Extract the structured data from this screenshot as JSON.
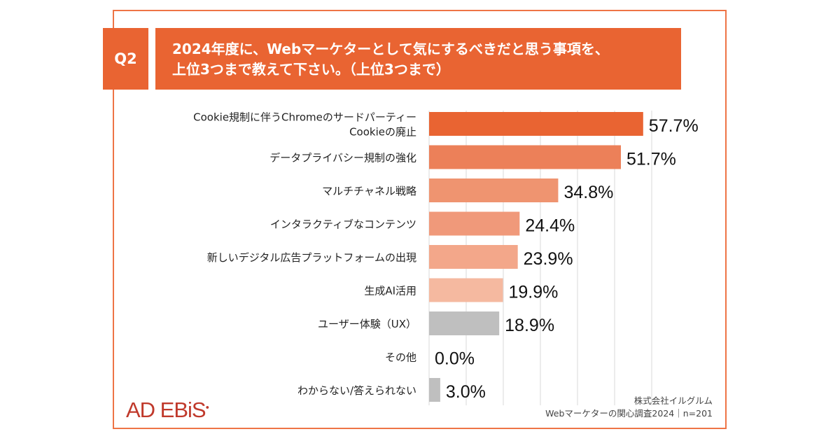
{
  "question": {
    "number": "Q2",
    "lines": [
      "2024年度に、Webマーケターとして気にするべきだと思う事項を、",
      "上位3つまで教えて下さい。（上位3つまで）"
    ]
  },
  "chart_data": {
    "type": "bar",
    "orientation": "horizontal",
    "categories": [
      [
        "Cookie規制に伴うChromeのサードパーティー",
        "Cookieの廃止"
      ],
      [
        "データプライバシー規制の強化"
      ],
      [
        "マルチチャネル戦略"
      ],
      [
        "インタラクティブなコンテンツ"
      ],
      [
        "新しいデジタル広告プラットフォームの出現"
      ],
      [
        "生成AI活用"
      ],
      [
        "ユーザー体験（UX）"
      ],
      [
        "その他"
      ],
      [
        "わからない/答えられない"
      ]
    ],
    "values": [
      57.7,
      51.7,
      34.8,
      24.4,
      23.9,
      19.9,
      18.9,
      0.0,
      3.0
    ],
    "value_labels": [
      "57.7%",
      "51.7%",
      "34.8%",
      "24.4%",
      "23.9%",
      "19.9%",
      "18.9%",
      "0.0%",
      "3.0%"
    ],
    "colors": [
      "#E96432",
      "#EC8059",
      "#EF9470",
      "#F0997A",
      "#F3A78A",
      "#F5B9A0",
      "#BFBFBF",
      "#BFBFBF",
      "#BFBFBF"
    ],
    "xlim": [
      0,
      60
    ],
    "grid": true,
    "grid_step": 10
  },
  "footer": {
    "logo": "AD EBiS.",
    "company": "株式会社イルグルム",
    "survey": "Webマーケターの関心調査2024｜n=201"
  }
}
